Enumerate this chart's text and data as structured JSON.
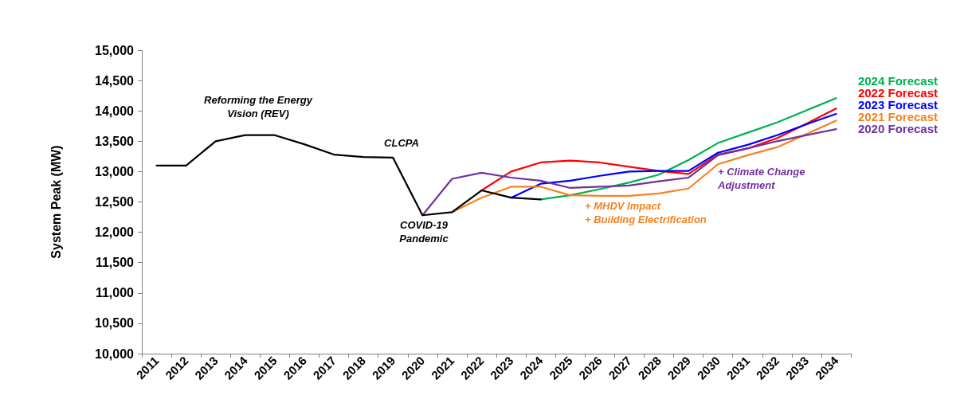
{
  "chart_data": {
    "type": "line",
    "ylabel": "System Peak (MW)",
    "categories": [
      "2011",
      "2012",
      "2013",
      "2014",
      "2015",
      "2016",
      "2017",
      "2018",
      "2019",
      "2020",
      "2021",
      "2022",
      "2023",
      "2024",
      "2025",
      "2026",
      "2027",
      "2028",
      "2029",
      "2030",
      "2031",
      "2032",
      "2033",
      "2034"
    ],
    "series": [
      {
        "color": "#000000",
        "values": [
          13100,
          13100,
          13500,
          13600,
          13600,
          13450,
          13280,
          13240,
          13230,
          12280,
          12330,
          12690,
          12570,
          12540,
          null,
          null,
          null,
          null,
          null,
          null,
          null,
          null,
          null,
          null
        ]
      },
      {
        "name": "2024 Forecast",
        "color": "#00b050",
        "values": [
          null,
          null,
          null,
          null,
          null,
          null,
          null,
          null,
          null,
          null,
          null,
          null,
          null,
          12540,
          12610,
          12710,
          12820,
          12950,
          13190,
          13470,
          13640,
          13810,
          14010,
          14210
        ]
      },
      {
        "name": "2022 Forecast",
        "color": "#ff0000",
        "values": [
          null,
          null,
          null,
          null,
          null,
          null,
          null,
          null,
          null,
          null,
          null,
          12690,
          13000,
          13150,
          13180,
          13150,
          13080,
          13010,
          12960,
          13280,
          13380,
          13550,
          13790,
          14040
        ]
      },
      {
        "name": "2023 Forecast",
        "color": "#0000ff",
        "values": [
          null,
          null,
          null,
          null,
          null,
          null,
          null,
          null,
          null,
          null,
          null,
          null,
          12570,
          12800,
          12850,
          12930,
          13000,
          13010,
          13010,
          13310,
          13440,
          13600,
          13780,
          13950
        ]
      },
      {
        "name": "2021 Forecast",
        "color": "#f5821f",
        "values": [
          null,
          null,
          null,
          null,
          null,
          null,
          null,
          null,
          null,
          null,
          12330,
          12570,
          12750,
          12750,
          12610,
          12600,
          12600,
          12640,
          12720,
          13120,
          13270,
          13400,
          13620,
          13840
        ]
      },
      {
        "name": "2020 Forecast",
        "color": "#7030a0",
        "values": [
          null,
          null,
          null,
          null,
          null,
          null,
          null,
          null,
          null,
          12280,
          12880,
          12980,
          12900,
          12850,
          12730,
          12750,
          12770,
          12840,
          12900,
          13270,
          13380,
          13500,
          13600,
          13700
        ]
      }
    ],
    "ylim": [
      10000,
      15000
    ],
    "yticks": [
      {
        "value": 10000,
        "label": "10,000"
      },
      {
        "value": 10500,
        "label": "10,500"
      },
      {
        "value": 11000,
        "label": "11,000"
      },
      {
        "value": 11500,
        "label": "11,500"
      },
      {
        "value": 12000,
        "label": "12,000"
      },
      {
        "value": 12500,
        "label": "12,500"
      },
      {
        "value": 13000,
        "label": "13,000"
      },
      {
        "value": 13500,
        "label": "13,500"
      },
      {
        "value": 14000,
        "label": "14,000"
      },
      {
        "value": 14500,
        "label": "14,500"
      },
      {
        "value": 15000,
        "label": "15,000"
      }
    ],
    "grid": false,
    "legend": "right",
    "marker": "none",
    "line_style": "solid",
    "annotations": [
      "Reforming the Energy\nVision (REV)",
      "CLCPA",
      "COVID-19\nPandemic",
      "+ MHDV Impact\n+ Building Electrification",
      "+ Climate Change\nAdjustment"
    ]
  }
}
